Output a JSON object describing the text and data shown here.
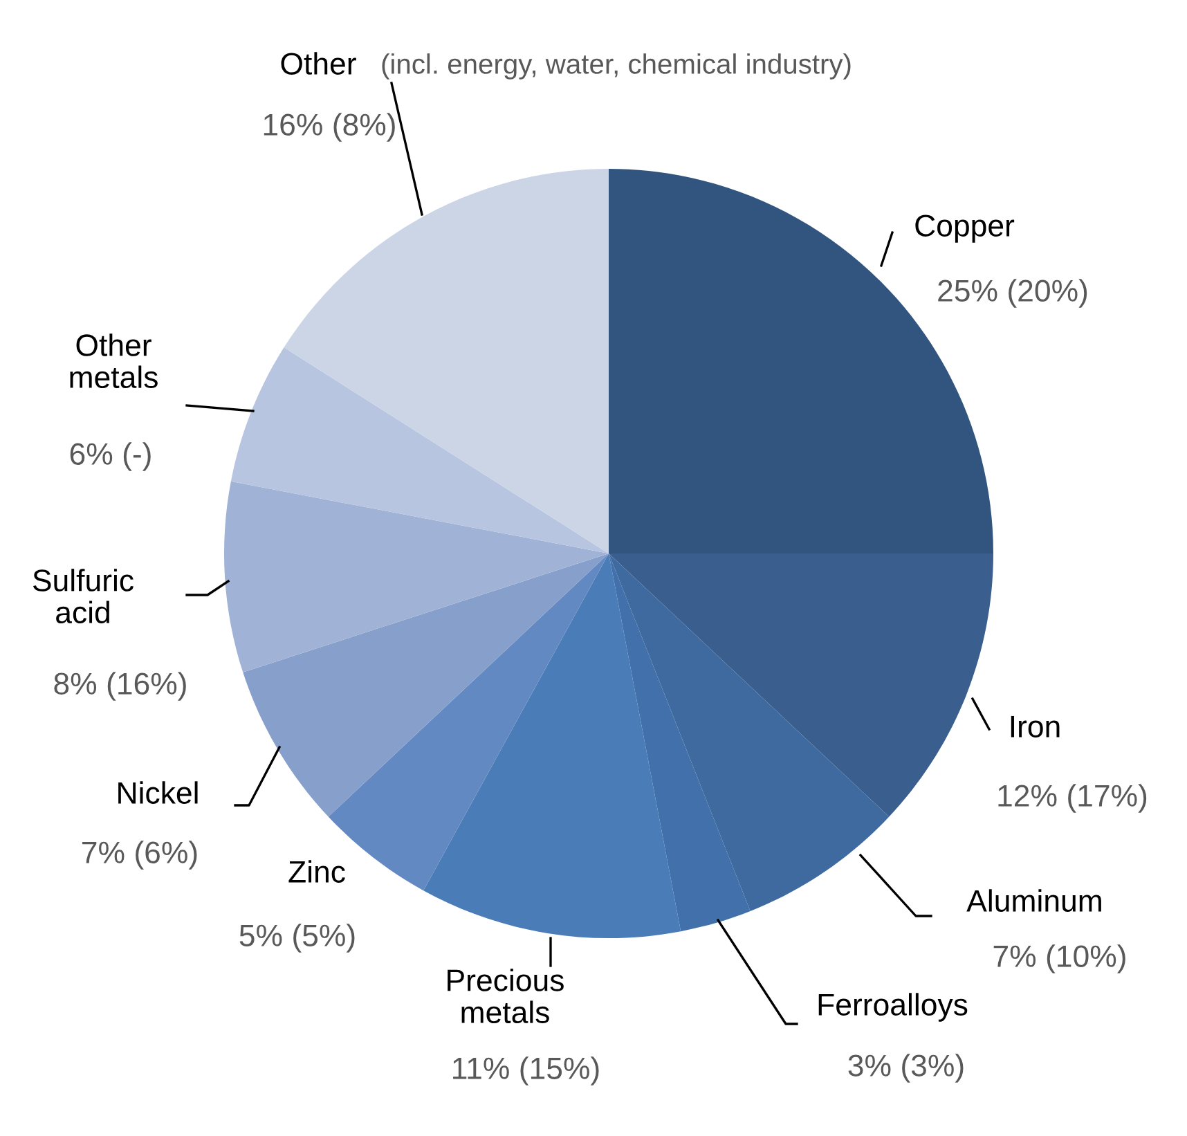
{
  "chart_data": {
    "type": "pie",
    "categories": [
      "Copper",
      "Iron",
      "Aluminum",
      "Ferroalloys",
      "Precious metals",
      "Zinc",
      "Nickel",
      "Sulfuric acid",
      "Other metals",
      "Other"
    ],
    "values": [
      25,
      12,
      7,
      3,
      11,
      5,
      7,
      8,
      6,
      16
    ],
    "value_labels": [
      "25% (20%)",
      "12% (17%)",
      "7% (10%)",
      "3% (3%)",
      "11% (15%)",
      "5% (5%)",
      "7% (6%)",
      "8% (16%)",
      "6% (-)",
      "16% (8%)"
    ],
    "colors": [
      "#32557f",
      "#3a5f8f",
      "#3f6aa0",
      "#4170aa",
      "#4a7db8",
      "#6289c2",
      "#87a0cb",
      "#a0b3d6",
      "#b8c5e0",
      "#ccd5e6"
    ],
    "annotations": [
      "(incl. energy, water, chemical industry)"
    ]
  }
}
